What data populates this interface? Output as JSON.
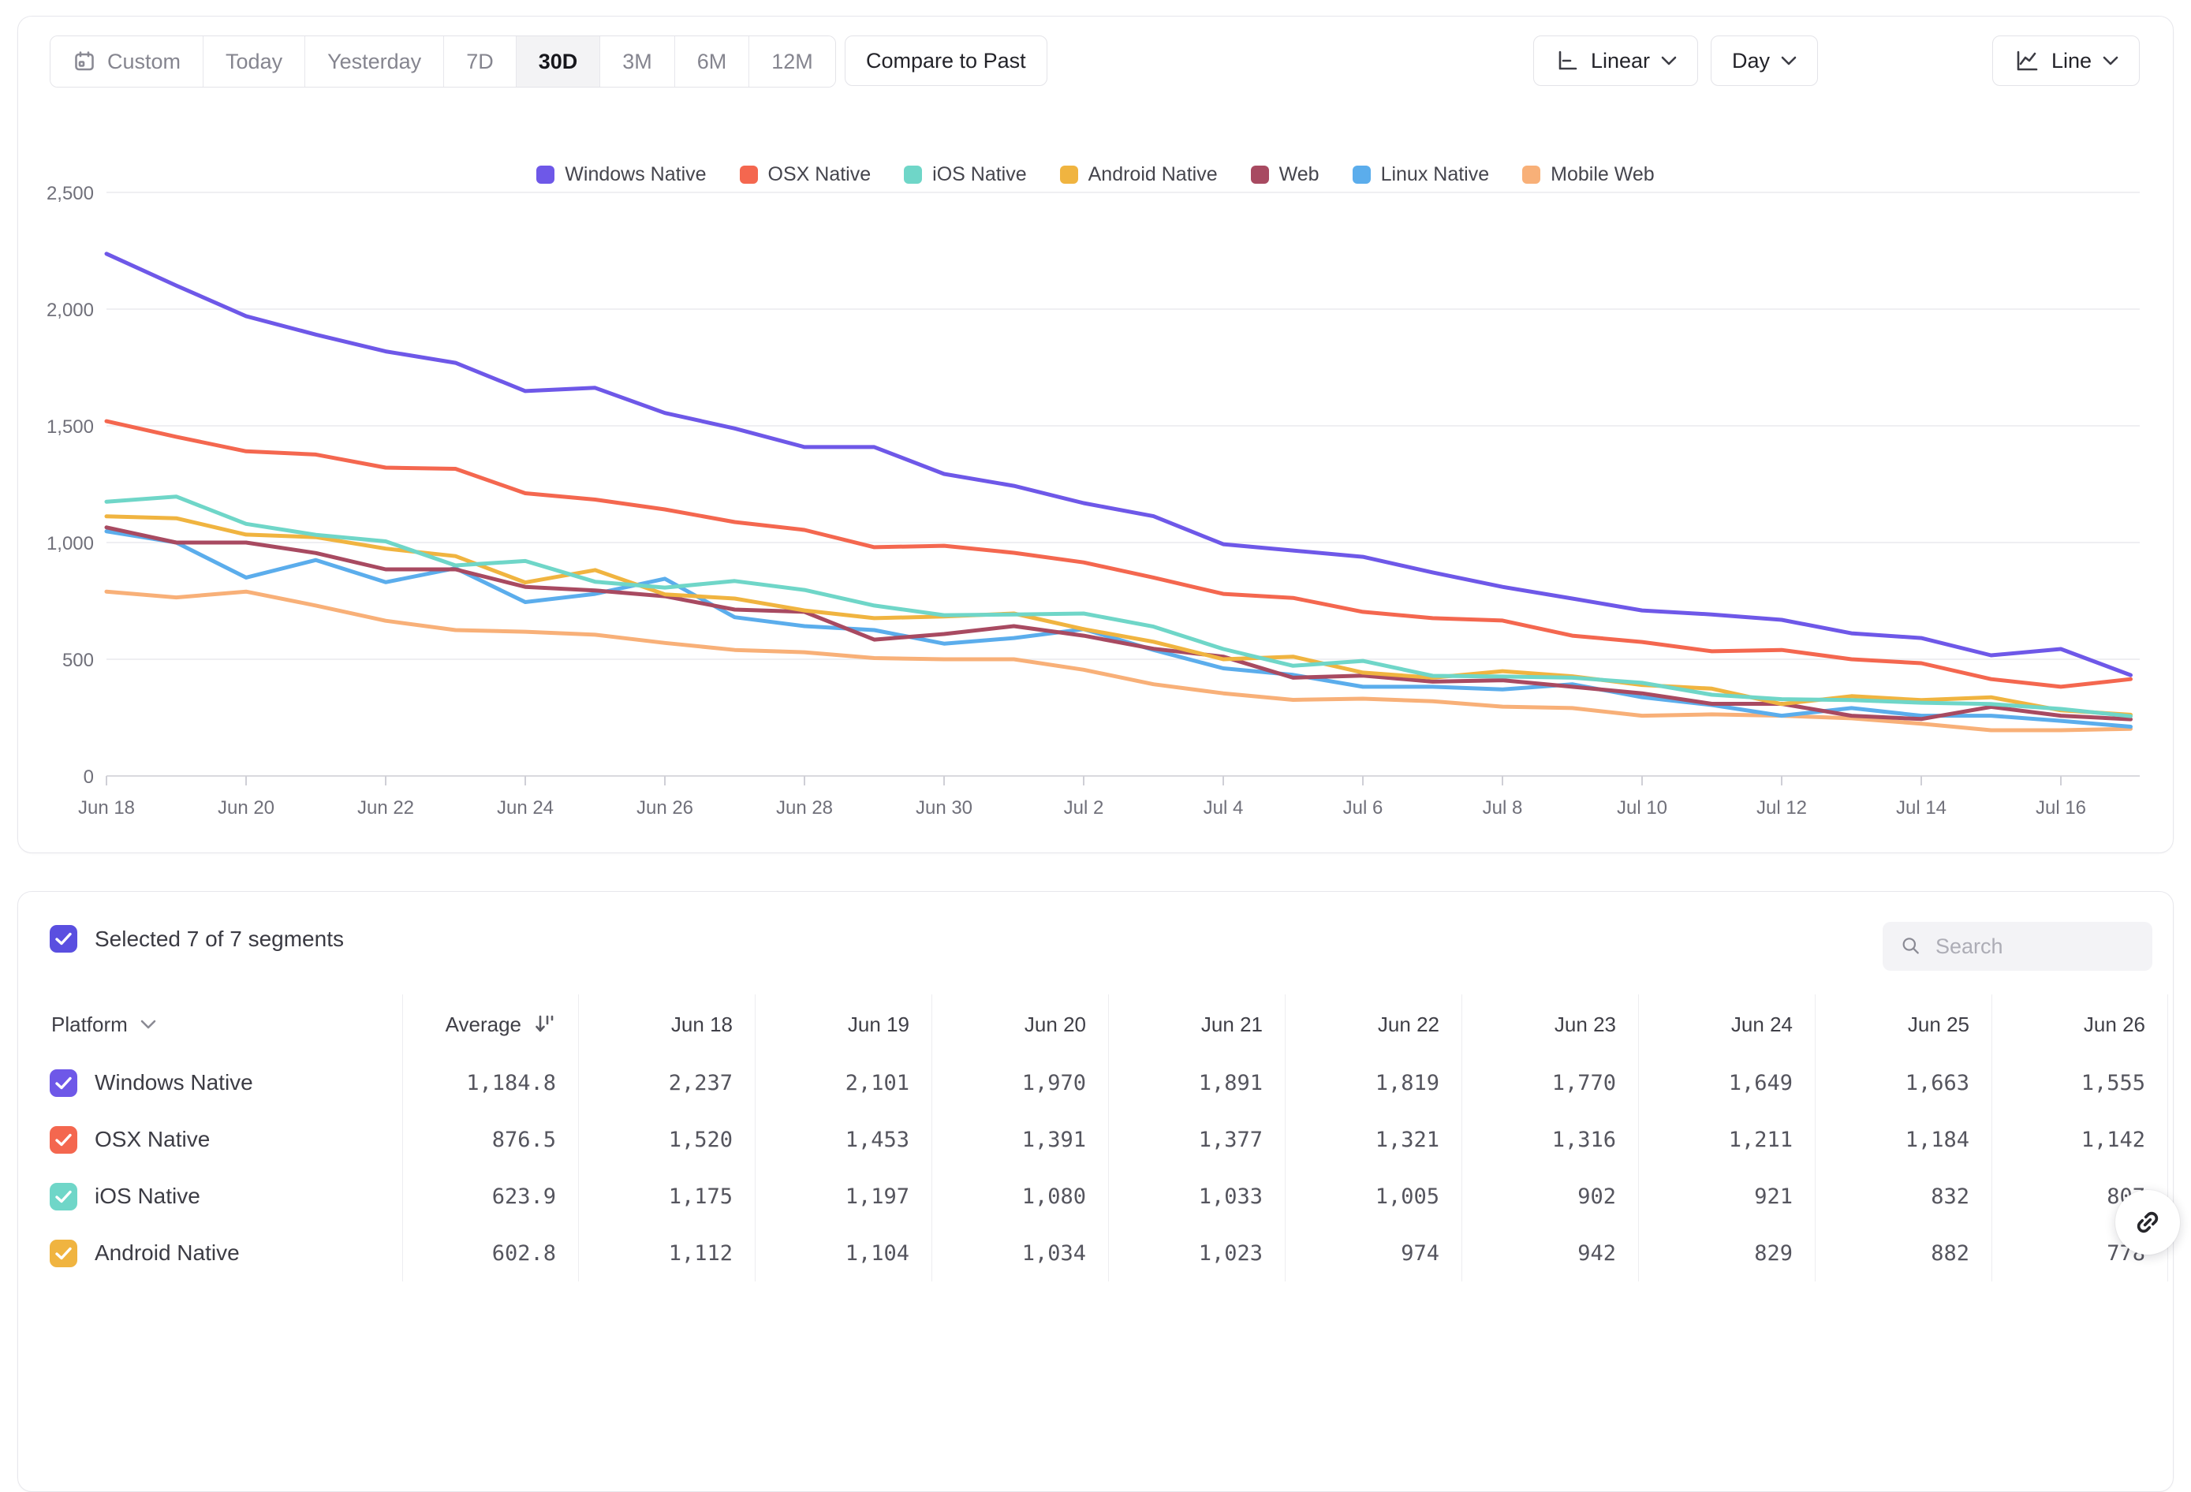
{
  "toolbar": {
    "ranges": [
      "Custom",
      "Today",
      "Yesterday",
      "7D",
      "30D",
      "3M",
      "6M",
      "12M"
    ],
    "selected_range": "30D",
    "compare_button": "Compare to Past",
    "scale_button": "Linear",
    "interval_button": "Day",
    "chart_type_button": "Line"
  },
  "chart_data": {
    "type": "line",
    "x": [
      "Jun 18",
      "Jun 19",
      "Jun 20",
      "Jun 21",
      "Jun 22",
      "Jun 23",
      "Jun 24",
      "Jun 25",
      "Jun 26",
      "Jun 27",
      "Jun 28",
      "Jun 29",
      "Jun 30",
      "Jul 1",
      "Jul 2",
      "Jul 3",
      "Jul 4",
      "Jul 5",
      "Jul 6",
      "Jul 7",
      "Jul 8",
      "Jul 9",
      "Jul 10",
      "Jul 11",
      "Jul 12",
      "Jul 13",
      "Jul 14",
      "Jul 15",
      "Jul 16",
      "Jul 17"
    ],
    "x_tick_every": 2,
    "ylim": [
      0,
      2500
    ],
    "yticks": [
      {
        "value": 0,
        "label": "0"
      },
      {
        "value": 500,
        "label": "500"
      },
      {
        "value": 1000,
        "label": "1,000"
      },
      {
        "value": 1500,
        "label": "1,500"
      },
      {
        "value": 2000,
        "label": "2,000"
      },
      {
        "value": 2500,
        "label": "2,500"
      }
    ],
    "grid": true,
    "legend_position": "top",
    "series": [
      {
        "name": "Windows Native",
        "color": "#6e58e8",
        "values": [
          2237,
          2101,
          1970,
          1891,
          1819,
          1770,
          1649,
          1663,
          1555,
          1489,
          1409,
          1409,
          1294,
          1243,
          1169,
          1113,
          993,
          966,
          939,
          872,
          810,
          760,
          709,
          692,
          669,
          611,
          591,
          517,
          544,
          432
        ]
      },
      {
        "name": "OSX Native",
        "color": "#f4674f",
        "values": [
          1520,
          1453,
          1391,
          1377,
          1321,
          1316,
          1211,
          1184,
          1142,
          1088,
          1054,
          980,
          986,
          956,
          915,
          850,
          780,
          763,
          703,
          676,
          666,
          601,
          574,
          534,
          540,
          500,
          483,
          415,
          382,
          415
        ]
      },
      {
        "name": "iOS Native",
        "color": "#6fd6c8",
        "values": [
          1175,
          1197,
          1080,
          1033,
          1005,
          902,
          921,
          832,
          807,
          835,
          797,
          730,
          689,
          692,
          696,
          640,
          544,
          472,
          493,
          429,
          426,
          421,
          399,
          348,
          329,
          325,
          314,
          308,
          287,
          256
        ]
      },
      {
        "name": "Android Native",
        "color": "#f0b440",
        "values": [
          1112,
          1104,
          1034,
          1023,
          974,
          942,
          829,
          882,
          778,
          760,
          709,
          676,
          683,
          696,
          629,
          575,
          500,
          511,
          443,
          421,
          449,
          427,
          390,
          374,
          308,
          342,
          325,
          337,
          281,
          262
        ]
      },
      {
        "name": "Web",
        "color": "#a84a61",
        "values": [
          1065,
          1000,
          1000,
          955,
          885,
          885,
          810,
          795,
          770,
          713,
          703,
          584,
          608,
          642,
          601,
          545,
          511,
          421,
          430,
          404,
          410,
          382,
          354,
          309,
          309,
          258,
          244,
          296,
          258,
          243
        ]
      },
      {
        "name": "Linux Native",
        "color": "#5badec",
        "values": [
          1048,
          1000,
          850,
          925,
          830,
          890,
          745,
          780,
          845,
          680,
          642,
          625,
          567,
          591,
          629,
          540,
          461,
          433,
          382,
          382,
          371,
          393,
          337,
          304,
          258,
          291,
          258,
          258,
          236,
          211
        ]
      },
      {
        "name": "Mobile Web",
        "color": "#f8b078",
        "values": [
          790,
          765,
          790,
          730,
          665,
          625,
          618,
          605,
          570,
          540,
          530,
          505,
          500,
          500,
          455,
          393,
          354,
          326,
          331,
          320,
          297,
          291,
          258,
          264,
          258,
          247,
          224,
          196,
          196,
          202
        ]
      }
    ]
  },
  "table": {
    "selected_summary": "Selected 7 of 7 segments",
    "select_all_color": "#5a4fe0",
    "search_placeholder": "Search",
    "platform_header": "Platform",
    "average_header": "Average",
    "columns": [
      "Jun 18",
      "Jun 19",
      "Jun 20",
      "Jun 21",
      "Jun 22",
      "Jun 23",
      "Jun 24",
      "Jun 25",
      "Jun 26"
    ],
    "rows": [
      {
        "name": "Windows Native",
        "color": "#6e58e8",
        "average": "1,184.8",
        "values": [
          "2,237",
          "2,101",
          "1,970",
          "1,891",
          "1,819",
          "1,770",
          "1,649",
          "1,663",
          "1,555"
        ]
      },
      {
        "name": "OSX Native",
        "color": "#f4674f",
        "average": "876.5",
        "values": [
          "1,520",
          "1,453",
          "1,391",
          "1,377",
          "1,321",
          "1,316",
          "1,211",
          "1,184",
          "1,142"
        ]
      },
      {
        "name": "iOS Native",
        "color": "#6fd6c8",
        "average": "623.9",
        "values": [
          "1,175",
          "1,197",
          "1,080",
          "1,033",
          "1,005",
          "902",
          "921",
          "832",
          "807"
        ]
      },
      {
        "name": "Android Native",
        "color": "#f0b440",
        "average": "602.8",
        "values": [
          "1,112",
          "1,104",
          "1,034",
          "1,023",
          "974",
          "942",
          "829",
          "882",
          "778"
        ]
      }
    ]
  }
}
